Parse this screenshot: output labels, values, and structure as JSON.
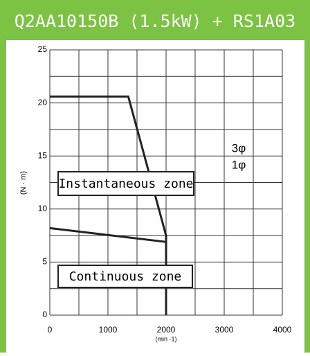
{
  "chart_data": {
    "type": "line",
    "title": "Q2AA10150B (1.5kW) + RS1A03",
    "x_label": "(min -1)",
    "y_label": "(N · m)",
    "xlim": [
      0,
      4000
    ],
    "ylim": [
      0,
      25
    ],
    "xticks": [
      0,
      1000,
      2000,
      3000,
      4000
    ],
    "yticks": [
      0,
      5,
      10,
      15,
      20,
      25
    ],
    "x_grid": [
      0,
      500,
      1000,
      1500,
      2000,
      2500,
      3000,
      3500,
      4000
    ],
    "y_grid": [
      0,
      2.5,
      5,
      7.5,
      10,
      12.5,
      15,
      17.5,
      20,
      22.5,
      25
    ],
    "grid": true,
    "series": [
      {
        "name": "Instantaneous zone",
        "color": "#222222",
        "x": [
          0,
          1350,
          2000,
          2000
        ],
        "values": [
          20.6,
          20.6,
          7.5,
          0
        ]
      },
      {
        "name": "Continuous zone",
        "color": "#222222",
        "x": [
          0,
          2000,
          2000
        ],
        "values": [
          8.2,
          6.9,
          0
        ]
      }
    ],
    "annotations": [
      "3φ",
      "1φ"
    ]
  }
}
